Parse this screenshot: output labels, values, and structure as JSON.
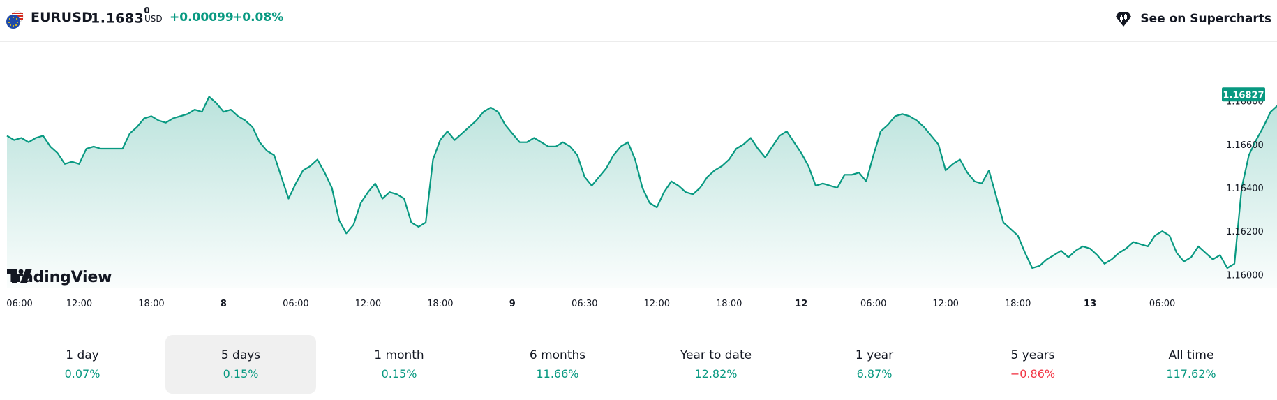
{
  "header": {
    "symbol": "EURUSD",
    "price_main": "1.1683",
    "price_sup": "0",
    "currency": "USD",
    "change": "+0.00099",
    "change_pct": "+0.08%",
    "supercharts_label": "See on Supercharts",
    "flag_icon": "eu-us-flag-icon",
    "supercharts_icon": "supercharts-logo-icon"
  },
  "colors": {
    "line": "#089981",
    "fill_top": "#089981",
    "price_tag": "#089981",
    "positive": "#089981",
    "negative": "#f23645"
  },
  "branding": {
    "logo_text": "TradingView"
  },
  "chart_data": {
    "type": "area",
    "title": "",
    "last_price_label": "1.16827",
    "y_ticks": [
      "1.16800",
      "1.16600",
      "1.16400",
      "1.16200",
      "1.16000"
    ],
    "y_tick_values": [
      1.168,
      1.166,
      1.164,
      1.162,
      1.16
    ],
    "ylim": [
      1.1594,
      1.1704
    ],
    "x_ticks": [
      {
        "label": "06:00",
        "bold": false
      },
      {
        "label": "12:00",
        "bold": false
      },
      {
        "label": "18:00",
        "bold": false
      },
      {
        "label": "8",
        "bold": true
      },
      {
        "label": "06:00",
        "bold": false
      },
      {
        "label": "12:00",
        "bold": false
      },
      {
        "label": "18:00",
        "bold": false
      },
      {
        "label": "9",
        "bold": true
      },
      {
        "label": "06:30",
        "bold": false
      },
      {
        "label": "12:00",
        "bold": false
      },
      {
        "label": "18:00",
        "bold": false
      },
      {
        "label": "12",
        "bold": true
      },
      {
        "label": "06:00",
        "bold": false
      },
      {
        "label": "12:00",
        "bold": false
      },
      {
        "label": "18:00",
        "bold": false
      },
      {
        "label": "13",
        "bold": true
      },
      {
        "label": "06:00",
        "bold": false
      }
    ],
    "x_tick_index": [
      0,
      10,
      20,
      30,
      40,
      50,
      60,
      70,
      80,
      90,
      100,
      110,
      120,
      130,
      140,
      150,
      160
    ],
    "x_index_max": 167,
    "values": [
      1.1664,
      1.1662,
      1.1663,
      1.1661,
      1.1663,
      1.1664,
      1.1659,
      1.1656,
      1.1651,
      1.1652,
      1.1651,
      1.1658,
      1.1659,
      1.1658,
      1.1658,
      1.1658,
      1.1658,
      1.1665,
      1.1668,
      1.1672,
      1.1673,
      1.1671,
      1.167,
      1.1672,
      1.1673,
      1.1674,
      1.1676,
      1.1675,
      1.1682,
      1.1679,
      1.1675,
      1.1676,
      1.1673,
      1.1671,
      1.1668,
      1.1661,
      1.1657,
      1.1655,
      1.1645,
      1.1635,
      1.1642,
      1.1648,
      1.165,
      1.1653,
      1.1647,
      1.164,
      1.1625,
      1.1619,
      1.1623,
      1.1633,
      1.1638,
      1.1642,
      1.1635,
      1.1638,
      1.1637,
      1.1635,
      1.1624,
      1.1622,
      1.1624,
      1.1653,
      1.1662,
      1.1666,
      1.1662,
      1.1665,
      1.1668,
      1.1671,
      1.1675,
      1.1677,
      1.1675,
      1.1669,
      1.1665,
      1.1661,
      1.1661,
      1.1663,
      1.1661,
      1.1659,
      1.1659,
      1.1661,
      1.1659,
      1.1655,
      1.1645,
      1.1641,
      1.1645,
      1.1649,
      1.1655,
      1.1659,
      1.1661,
      1.1653,
      1.164,
      1.1633,
      1.1631,
      1.1638,
      1.1643,
      1.1641,
      1.1638,
      1.1637,
      1.164,
      1.1645,
      1.1648,
      1.165,
      1.1653,
      1.1658,
      1.166,
      1.1663,
      1.1658,
      1.1654,
      1.1659,
      1.1664,
      1.1666,
      1.1661,
      1.1656,
      1.165,
      1.1641,
      1.1642,
      1.1641,
      1.164,
      1.1646,
      1.1646,
      1.1647,
      1.1643,
      1.1655,
      1.1666,
      1.1669,
      1.1673,
      1.1674,
      1.1673,
      1.1671,
      1.1668,
      1.1664,
      1.166,
      1.1648,
      1.1651,
      1.1653,
      1.1647,
      1.1643,
      1.1642,
      1.1648,
      1.1636,
      1.1624,
      1.1621,
      1.1618,
      1.161,
      1.1603,
      1.1604,
      1.1607,
      1.1609,
      1.1611,
      1.1608,
      1.1611,
      1.1613,
      1.1612,
      1.1609,
      1.1605,
      1.1607,
      1.161,
      1.1612,
      1.1615,
      1.1614,
      1.1613,
      1.1618,
      1.162,
      1.1618,
      1.161,
      1.1606,
      1.1608,
      1.1613,
      1.161,
      1.1607,
      1.1609,
      1.1603,
      1.1605,
      1.164,
      1.1655,
      1.1662,
      1.1668,
      1.1675,
      1.1678,
      1.1681,
      1.168,
      1.1683
    ]
  },
  "periods": [
    {
      "label": "1 day",
      "value": "0.07%",
      "trend": "pos",
      "active": false
    },
    {
      "label": "5 days",
      "value": "0.15%",
      "trend": "pos",
      "active": true
    },
    {
      "label": "1 month",
      "value": "0.15%",
      "trend": "pos",
      "active": false
    },
    {
      "label": "6 months",
      "value": "11.66%",
      "trend": "pos",
      "active": false
    },
    {
      "label": "Year to date",
      "value": "12.82%",
      "trend": "pos",
      "active": false
    },
    {
      "label": "1 year",
      "value": "6.87%",
      "trend": "pos",
      "active": false
    },
    {
      "label": "5 years",
      "value": "−0.86%",
      "trend": "neg",
      "active": false
    },
    {
      "label": "All time",
      "value": "117.62%",
      "trend": "pos",
      "active": false
    }
  ]
}
